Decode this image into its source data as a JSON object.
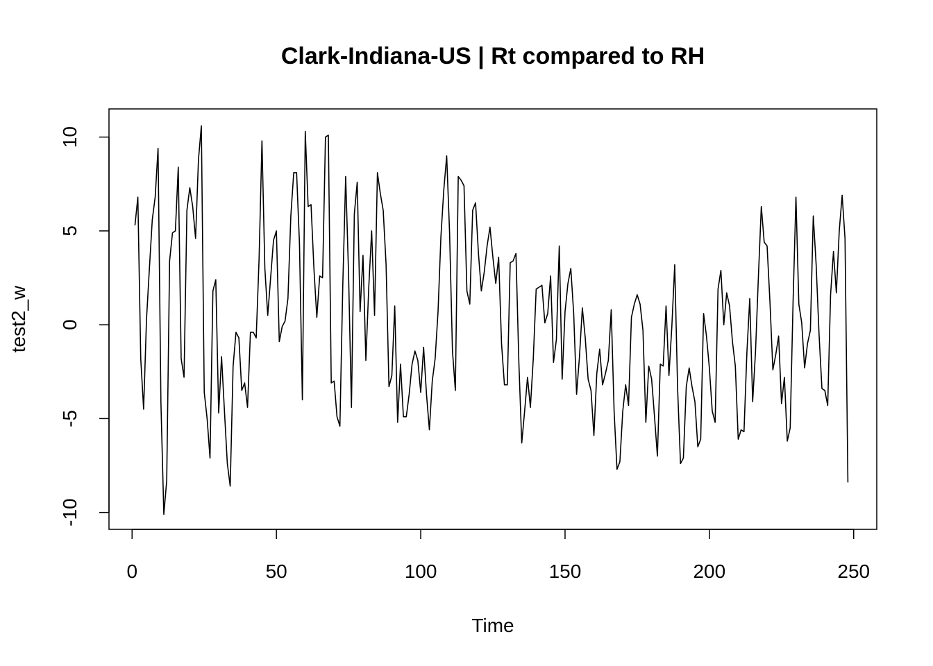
{
  "chart_data": {
    "type": "line",
    "title": "Clark-Indiana-US | Rt compared to RH",
    "xlabel": "Time",
    "ylabel": "test2_w",
    "xlim": [
      -8,
      258
    ],
    "ylim": [
      -10.9,
      11.5
    ],
    "x_ticks": [
      0,
      50,
      100,
      150,
      200,
      250
    ],
    "x_tick_labels": [
      "0",
      "50",
      "100",
      "150",
      "200",
      "250"
    ],
    "y_ticks": [
      -10,
      -5,
      0,
      5,
      10
    ],
    "y_tick_labels": [
      "-10",
      "-5",
      "0",
      "5",
      "10"
    ],
    "grid": false,
    "legend": "none",
    "series": [
      {
        "x_start": 1,
        "x_step": 1,
        "values": [
          5.3,
          6.8,
          -1.8,
          -4.5,
          0.3,
          3.0,
          5.6,
          6.8,
          9.4,
          -4.2,
          -10.1,
          -8.3,
          3.4,
          4.9,
          5.0,
          8.4,
          -1.8,
          -2.8,
          6.1,
          7.3,
          6.3,
          4.6,
          8.8,
          10.6,
          -3.6,
          -5.0,
          -7.1,
          1.8,
          2.4,
          -4.7,
          -1.7,
          -4.6,
          -7.4,
          -8.6,
          -2.2,
          -0.4,
          -0.7,
          -3.5,
          -3.1,
          -4.4,
          -0.4,
          -0.4,
          -0.7,
          3.5,
          9.8,
          3.0,
          0.5,
          2.5,
          4.5,
          5.0,
          -0.9,
          -0.1,
          0.2,
          1.4,
          5.8,
          8.1,
          8.1,
          4.3,
          -4.0,
          10.3,
          6.3,
          6.4,
          3.0,
          0.4,
          2.6,
          2.5,
          10.0,
          10.1,
          -3.1,
          -3.0,
          -4.9,
          -5.4,
          2.1,
          7.9,
          2.7,
          -4.4,
          5.9,
          7.6,
          0.7,
          3.7,
          -1.9,
          2.0,
          5.0,
          0.5,
          8.1,
          7.0,
          6.1,
          3.2,
          -3.3,
          -2.7,
          1.0,
          -5.2,
          -2.1,
          -4.9,
          -4.9,
          -3.7,
          -2.1,
          -1.4,
          -1.9,
          -3.6,
          -1.2,
          -3.7,
          -5.6,
          -3.0,
          -1.8,
          0.7,
          4.7,
          7.2,
          9.0,
          4.9,
          -1.4,
          -3.5,
          7.9,
          7.7,
          7.4,
          1.8,
          1.1,
          6.1,
          6.5,
          3.8,
          1.8,
          2.8,
          4.2,
          5.2,
          3.6,
          2.2,
          3.6,
          -1.0,
          -3.2,
          -3.2,
          3.3,
          3.4,
          3.8,
          -2.0,
          -6.3,
          -4.6,
          -2.8,
          -4.4,
          -1.8,
          1.9,
          2.0,
          2.1,
          0.1,
          0.6,
          2.6,
          -2.0,
          -0.8,
          4.2,
          -2.9,
          0.7,
          2.2,
          3.0,
          0.6,
          -3.7,
          -1.7,
          0.9,
          -0.7,
          -2.9,
          -3.5,
          -5.9,
          -2.6,
          -1.3,
          -3.2,
          -2.6,
          -1.9,
          0.8,
          -4.6,
          -7.7,
          -7.3,
          -4.6,
          -3.2,
          -4.3,
          0.4,
          1.1,
          1.6,
          1.1,
          -0.3,
          -5.2,
          -2.2,
          -2.9,
          -4.9,
          -7.0,
          -2.1,
          -2.2,
          1.0,
          -2.7,
          -0.1,
          3.2,
          -3.4,
          -7.4,
          -7.1,
          -3.3,
          -2.3,
          -3.3,
          -4.1,
          -6.5,
          -6.1,
          0.6,
          -0.6,
          -2.3,
          -4.6,
          -5.2,
          1.9,
          2.9,
          0.0,
          1.7,
          1.0,
          -0.9,
          -2.2,
          -6.1,
          -5.6,
          -5.7,
          -1.5,
          1.4,
          -4.1,
          -1.4,
          2.6,
          6.3,
          4.4,
          4.2,
          1.2,
          -2.4,
          -1.6,
          -0.6,
          -4.2,
          -2.8,
          -6.2,
          -5.5,
          1.2,
          6.8,
          1.1,
          0.1,
          -2.3,
          -1.0,
          -0.3,
          5.8,
          3.2,
          -0.5,
          -3.4,
          -3.5,
          -4.3,
          1.6,
          3.9,
          1.7,
          5.0,
          6.9,
          4.6,
          -8.4
        ]
      }
    ]
  }
}
